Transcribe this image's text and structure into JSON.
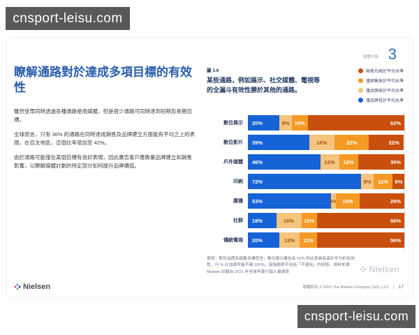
{
  "watermarks": {
    "top_left": "cnsport-leisu.com",
    "bottom_right": "cnsport-leisu.com"
  },
  "page": {
    "header": {
      "section_label": "媒體平衡",
      "chapter_number": "3"
    },
    "left": {
      "heading": "瞭解通路對於達成多項目標的有效性",
      "paragraph1": "雖然受眾同時透過各種通路使用媒體，但是很少通路可同時達到短期及長期目標。",
      "paragraph2": "全球而言，只有 36% 的通路在同時達成銷售及品牌建立方面能有平均之上的表現，在亞太地區，這個比率增加至 42%。",
      "paragraph3": "由於通路可能僅在某個目標有良好表現，因此廣告客戶應衡量品牌建立和銷售影響，以瞭解媒體計劃的特定部分如何提升品牌價值。"
    },
    "figure": {
      "label": "圖 3.6",
      "title": "某些通路，例如展示、社交媒體、電視等的全漏斗有效性勝於其他的通路。",
      "footnote": "意即：對於品牌及銷售目標而言，數位展示廣告有 62% 的比率具有高於平均的有效性。行 % 比加總可能不達 100%，因為圖表不包括「不適用」的回答。資料來源：Nielsen 記錄自 2021 年全球年度行銷人員調查",
      "brand_watermark": "Nielsen"
    },
    "footer": {
      "brand": "Nielsen",
      "copyright": "版權所有 © 2021 The Nielsen Company (US), LLC",
      "separator": "|",
      "page_number": "17"
    }
  },
  "chart_data": {
    "type": "bar",
    "stacked": true,
    "orientation": "horizontal",
    "xlim": [
      0,
      100
    ],
    "value_suffix": "%",
    "grid": "right-edge-100%-line",
    "legend_position": "top-right",
    "categories": [
      "數位展示",
      "數位影片",
      "戶外媒體",
      "印刷",
      "廣播",
      "社群",
      "傳統電視"
    ],
    "series": [
      {
        "name": "僅品牌低於平均水準",
        "color": "#1563d6",
        "label_color": "#ffffff",
        "values": [
          20,
          39,
          46,
          72,
          53,
          18,
          20
        ]
      },
      {
        "name": "僅品牌高於平均水準",
        "color": "#f5c47e",
        "label_color": "#a4560a",
        "values": [
          8,
          16,
          12,
          8,
          3,
          16,
          13
        ]
      },
      {
        "name": "僅銷售高於平均水準",
        "color": "#f59b25",
        "label_color": "#ffffff",
        "values": [
          10,
          22,
          12,
          12,
          15,
          10,
          11
        ]
      },
      {
        "name": "兩者均高於平均水準",
        "color": "#c94f0e",
        "label_color": "#ffffff",
        "values": [
          62,
          22,
          30,
          9,
          29,
          56,
          56
        ]
      }
    ],
    "legend_display_order": [
      3,
      2,
      1,
      0
    ]
  }
}
